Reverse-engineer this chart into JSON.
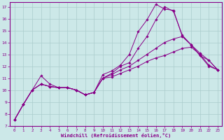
{
  "xlabel": "Windchill (Refroidissement éolien,°C)",
  "bg_color": "#cce8e8",
  "line_color": "#880088",
  "grid_color": "#aacccc",
  "xlim": [
    -0.5,
    23.5
  ],
  "ylim": [
    7,
    17.4
  ],
  "yticks": [
    7,
    8,
    9,
    10,
    11,
    12,
    13,
    14,
    15,
    16,
    17
  ],
  "xticks": [
    0,
    1,
    2,
    3,
    4,
    5,
    6,
    7,
    8,
    9,
    10,
    11,
    12,
    13,
    14,
    15,
    16,
    17,
    18,
    19,
    20,
    21,
    22,
    23
  ],
  "lines": [
    {
      "x": [
        0,
        1,
        2,
        3,
        4,
        5,
        6,
        7,
        8,
        9,
        10,
        11,
        12,
        13,
        14,
        15,
        16,
        17,
        18,
        19,
        20,
        21,
        22,
        23
      ],
      "y": [
        7.5,
        8.8,
        10.0,
        11.2,
        10.5,
        10.2,
        10.2,
        10.0,
        9.6,
        9.8,
        11.3,
        11.6,
        12.1,
        13.0,
        14.9,
        15.9,
        17.2,
        16.8,
        16.7,
        14.5,
        13.8,
        13.1,
        12.5,
        11.7
      ]
    },
    {
      "x": [
        0,
        1,
        2,
        3,
        4,
        5,
        6,
        7,
        8,
        9,
        10,
        11,
        12,
        13,
        14,
        15,
        16,
        17,
        18,
        19,
        20,
        21,
        22,
        23
      ],
      "y": [
        7.5,
        8.8,
        10.0,
        10.5,
        10.3,
        10.2,
        10.2,
        10.0,
        9.6,
        9.8,
        11.0,
        11.4,
        12.0,
        12.3,
        13.5,
        14.5,
        15.9,
        17.0,
        16.6,
        14.6,
        13.8,
        12.9,
        12.5,
        11.7
      ]
    },
    {
      "x": [
        0,
        1,
        2,
        3,
        4,
        5,
        6,
        7,
        8,
        9,
        10,
        11,
        12,
        13,
        14,
        15,
        16,
        17,
        18,
        19,
        20,
        21,
        22,
        23
      ],
      "y": [
        7.5,
        8.8,
        10.0,
        10.5,
        10.3,
        10.2,
        10.2,
        10.0,
        9.6,
        9.8,
        11.0,
        11.3,
        11.7,
        12.0,
        12.5,
        13.0,
        13.5,
        14.0,
        14.3,
        14.5,
        13.8,
        12.9,
        12.0,
        11.7
      ]
    },
    {
      "x": [
        0,
        1,
        2,
        3,
        4,
        5,
        6,
        7,
        8,
        9,
        10,
        11,
        12,
        13,
        14,
        15,
        16,
        17,
        18,
        19,
        20,
        21,
        22,
        23
      ],
      "y": [
        7.5,
        8.8,
        10.0,
        10.5,
        10.3,
        10.2,
        10.2,
        10.0,
        9.6,
        9.8,
        11.0,
        11.1,
        11.4,
        11.7,
        12.0,
        12.4,
        12.7,
        12.9,
        13.2,
        13.5,
        13.6,
        13.0,
        12.1,
        11.7
      ]
    }
  ]
}
